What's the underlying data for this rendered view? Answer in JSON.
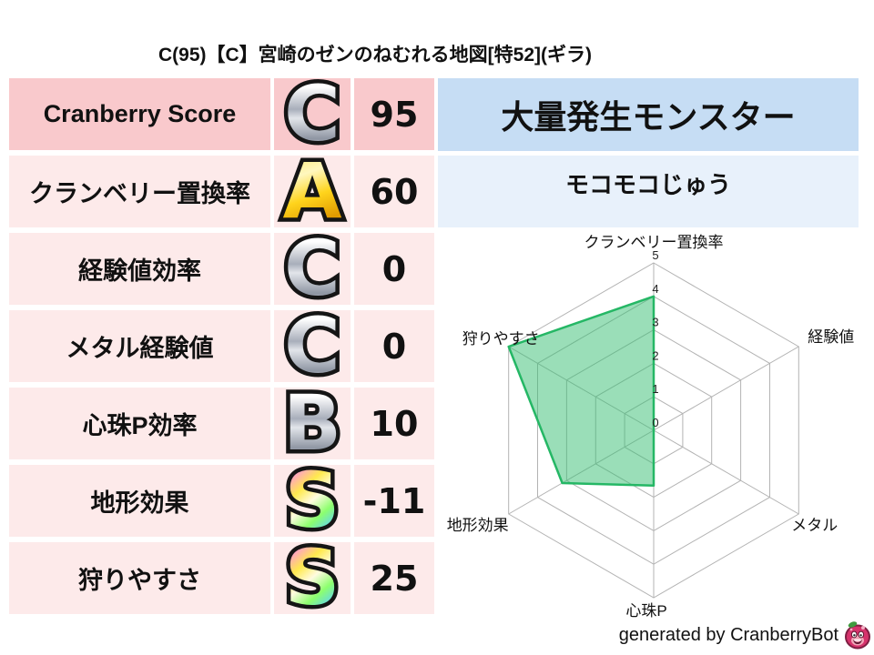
{
  "title": "C(95)【C】宮崎のゼンのねむれる地図[特52](ギラ)",
  "colors": {
    "row_emphasis_bg": "#f9c9cc",
    "row_bg": "#fdeaea",
    "outbreak_header_bg": "#c6ddf4",
    "outbreak_sub_bg": "#e8f1fb"
  },
  "stats_table": {
    "rows": [
      {
        "label": "Cranberry Score",
        "grade": "C",
        "grade_style": "silver",
        "value": "95"
      },
      {
        "label": "クランベリー置換率",
        "grade": "A",
        "grade_style": "gold",
        "value": "60"
      },
      {
        "label": "経験値効率",
        "grade": "C",
        "grade_style": "silver",
        "value": "0"
      },
      {
        "label": "メタル経験値",
        "grade": "C",
        "grade_style": "silver",
        "value": "0"
      },
      {
        "label": "心珠P効率",
        "grade": "B",
        "grade_style": "silver",
        "value": "10"
      },
      {
        "label": "地形効果",
        "grade": "S",
        "grade_style": "rainbow",
        "value": "-11"
      },
      {
        "label": "狩りやすさ",
        "grade": "S",
        "grade_style": "rainbow",
        "value": "25"
      }
    ]
  },
  "outbreak_panel": {
    "header": "大量発生モンスター",
    "monster": "モコモコじゅう"
  },
  "chart_data": {
    "type": "radar",
    "axes": [
      "クランベリー置換率",
      "経験値",
      "メタル",
      "心珠P",
      "地形効果",
      "狩りやすさ"
    ],
    "values": [
      4,
      0,
      0,
      1.65,
      3.15,
      5
    ],
    "ticks": [
      0,
      1,
      2,
      3,
      4,
      5
    ],
    "max": 5,
    "grid": true,
    "fill_color": "#36bd72",
    "line_color": "#25b765",
    "grid_color": "#b3b3b3"
  },
  "footer": {
    "credit": "generated by CranberryBot",
    "icon": "cranberry-bot-icon"
  }
}
